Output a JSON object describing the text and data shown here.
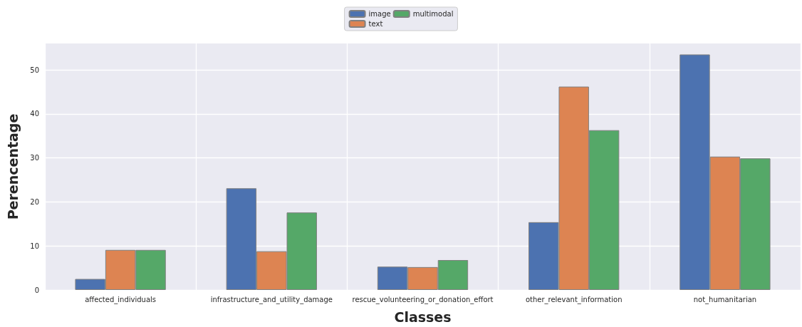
{
  "chart_data": {
    "type": "bar",
    "xlabel": "Classes",
    "ylabel": "Perencentage",
    "categories": [
      "affected_individuals",
      "infrastructure_and_utility_damage",
      "rescue_volunteering_or_donation_effort",
      "other_relevant_information",
      "not_humanitarian"
    ],
    "series": [
      {
        "name": "image",
        "color": "#4c72b0",
        "values": [
          2.5,
          23.1,
          5.3,
          15.4,
          53.5
        ]
      },
      {
        "name": "text",
        "color": "#dd8452",
        "values": [
          9.1,
          8.8,
          5.2,
          46.2,
          30.3
        ]
      },
      {
        "name": "multimodal",
        "color": "#55a868",
        "values": [
          9.1,
          17.6,
          6.8,
          36.3,
          29.9
        ]
      }
    ],
    "ylim": [
      0,
      56
    ],
    "yticks": [
      0,
      10,
      20,
      30,
      40,
      50
    ],
    "grid": true,
    "legend": "top"
  }
}
